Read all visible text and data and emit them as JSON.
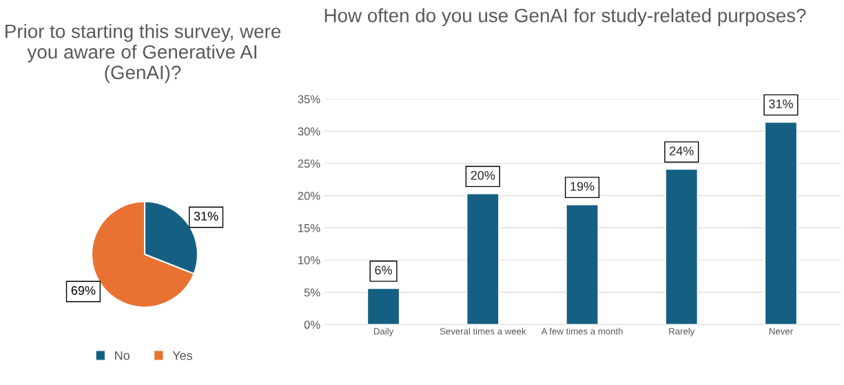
{
  "chart_data": [
    {
      "type": "pie",
      "title": "Prior to starting this survey, were you aware of Generative AI (GenAI)?",
      "categories": [
        "No",
        "Yes"
      ],
      "values": [
        31,
        69
      ],
      "colors": [
        "#156082",
        "#e97132"
      ],
      "value_labels": [
        "31%",
        "69%"
      ],
      "legend": "bottom"
    },
    {
      "type": "bar",
      "title": "How often do you use GenAI for study-related purposes?",
      "categories": [
        "Daily",
        "Several times a week",
        "A few times a month",
        "Rarely",
        "Never"
      ],
      "values": [
        5.6,
        20.3,
        18.6,
        24.1,
        31.4
      ],
      "color": "#156082",
      "value_labels": [
        "6%",
        "20%",
        "19%",
        "24%",
        "31%"
      ],
      "ylim": [
        0,
        35
      ],
      "yticks": [
        {
          "value": 0,
          "label": "0%"
        },
        {
          "value": 5,
          "label": "5%"
        },
        {
          "value": 10,
          "label": "10%"
        },
        {
          "value": 15,
          "label": "15%"
        },
        {
          "value": 20,
          "label": "20%"
        },
        {
          "value": 25,
          "label": "25%"
        },
        {
          "value": 30,
          "label": "30%"
        },
        {
          "value": 35,
          "label": "35%"
        }
      ],
      "grid": "y"
    }
  ]
}
